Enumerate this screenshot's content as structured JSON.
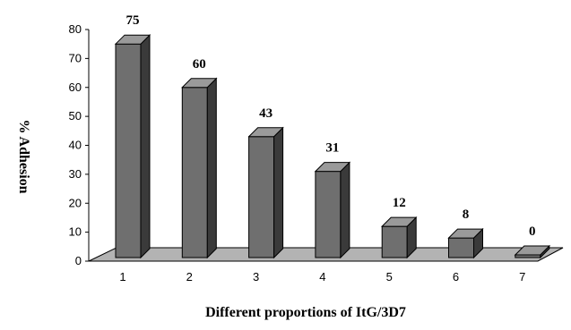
{
  "chart_data": {
    "type": "bar",
    "categories": [
      "1",
      "2",
      "3",
      "4",
      "5",
      "6",
      "7"
    ],
    "values": [
      75,
      60,
      43,
      31,
      12,
      8,
      0
    ],
    "data_labels": [
      "75",
      "60",
      "43",
      "31",
      "12",
      "8",
      "0"
    ],
    "title": "",
    "xlabel": "Different proportions of ItG/3D7",
    "ylabel": "% Adhesion",
    "ylim": [
      0,
      80
    ],
    "yticks": [
      "0",
      "10",
      "20",
      "30",
      "40",
      "50",
      "60",
      "70",
      "80"
    ],
    "grid": false,
    "legend": "none",
    "style": "3d",
    "colors": {
      "bar_front": "#6f6f6f",
      "bar_side": "#3a3a3a",
      "bar_top": "#9a9a9a",
      "floor": "#b3b3b3",
      "outline": "#000000"
    }
  }
}
